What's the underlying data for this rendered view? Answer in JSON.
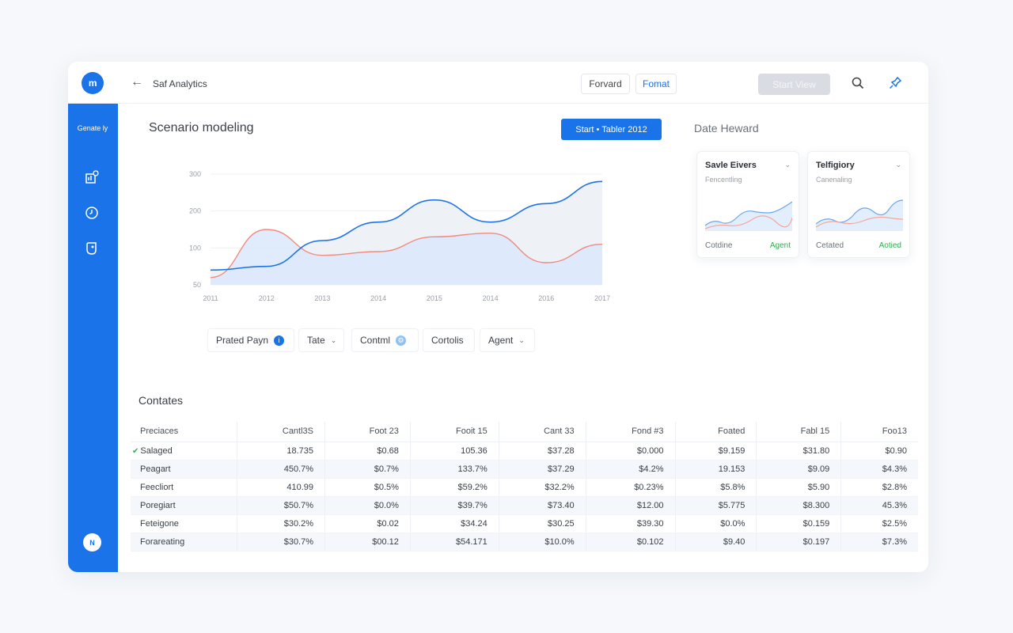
{
  "header": {
    "logo_text": "m",
    "back_icon": "arrow-left-icon",
    "title": "Saf Analytics",
    "forward_label": "Forvard",
    "format_label": "Fomat",
    "start_view_label": "Start View",
    "search_icon": "search-icon",
    "pin_icon": "pin-icon"
  },
  "sidebar": {
    "brand_label": "Genate ly",
    "items": [
      {
        "icon": "chart-add-icon"
      },
      {
        "icon": "clock-icon"
      },
      {
        "icon": "tag-icon"
      }
    ],
    "avatar_text": "N"
  },
  "main": {
    "chart_title": "Scenario modeling",
    "primary_button_label": "Start •  Tabler 2012",
    "filters": [
      {
        "label": "Prated Payn",
        "badge": "i"
      },
      {
        "label": "Tate",
        "chevron": "⌄"
      },
      {
        "label": "Contml",
        "badge": "⚙"
      },
      {
        "label": "Cortolis"
      },
      {
        "label": "Agent",
        "chevron": "⌄"
      }
    ]
  },
  "chart_data": {
    "type": "area",
    "x": [
      "2011",
      "2012",
      "2013",
      "2014",
      "2015",
      "2014",
      "2016",
      "2017"
    ],
    "y_ticks": [
      "300",
      "200",
      "100",
      "50"
    ],
    "ylim": [
      0,
      300
    ],
    "grid": true,
    "series": [
      {
        "values": [
          40,
          50,
          120,
          170,
          230,
          170,
          220,
          280
        ],
        "color": "#1a73e8"
      },
      {
        "values": [
          20,
          150,
          80,
          90,
          130,
          140,
          60,
          110
        ],
        "color": "#f08a7e"
      }
    ]
  },
  "right_panel": {
    "title": "Date Heward",
    "cards": [
      {
        "title": "Savle Eivers",
        "subtitle": "Fencentling",
        "footer_left": "Cotdine",
        "footer_right": "Agent"
      },
      {
        "title": "Telfigiory",
        "subtitle": "Canenaling",
        "footer_left": "Cetated",
        "footer_right": "Aotied"
      }
    ]
  },
  "table": {
    "title": "Contates",
    "columns": [
      "Preciaces",
      "Cantl3S",
      "Foot 23",
      "Fooit 15",
      "Cant 33",
      "Fond #3",
      "Foated",
      "Fabl 15",
      "Foo13"
    ],
    "rows": [
      {
        "cells": [
          "Salaged",
          "18.735",
          "$0.68",
          "105.36",
          "$37.28",
          "$0.000",
          "$9.159",
          "$31.80",
          "$0.90"
        ],
        "checked": true
      },
      {
        "cells": [
          "Peagart",
          "450.7%",
          "$0.7%",
          "133.7%",
          "$37.29",
          "$4.2%",
          "19.153",
          "$9.09",
          "$4.3%"
        ]
      },
      {
        "cells": [
          "Feecliort",
          "410.99",
          "$0.5%",
          "$59.2%",
          "$32.2%",
          "$0.23%",
          "$5.8%",
          "$5.90",
          "$2.8%"
        ]
      },
      {
        "cells": [
          "Poregiart",
          "$50.7%",
          "$0.0%",
          "$39.7%",
          "$73.40",
          "$12.00",
          "$5.775",
          "$8.300",
          "45.3%"
        ]
      },
      {
        "cells": [
          "Feteigone",
          "$30.2%",
          "$0.02",
          "$34.24",
          "$30.25",
          "$39.30",
          "$0.0%",
          "$0.159",
          "$2.5%"
        ]
      },
      {
        "cells": [
          "Forareating",
          "$30.7%",
          "$00.12",
          "$54.171",
          "$10.0%",
          "$0.102",
          "$9.40",
          "$0.197",
          "$7.3%"
        ]
      }
    ]
  }
}
